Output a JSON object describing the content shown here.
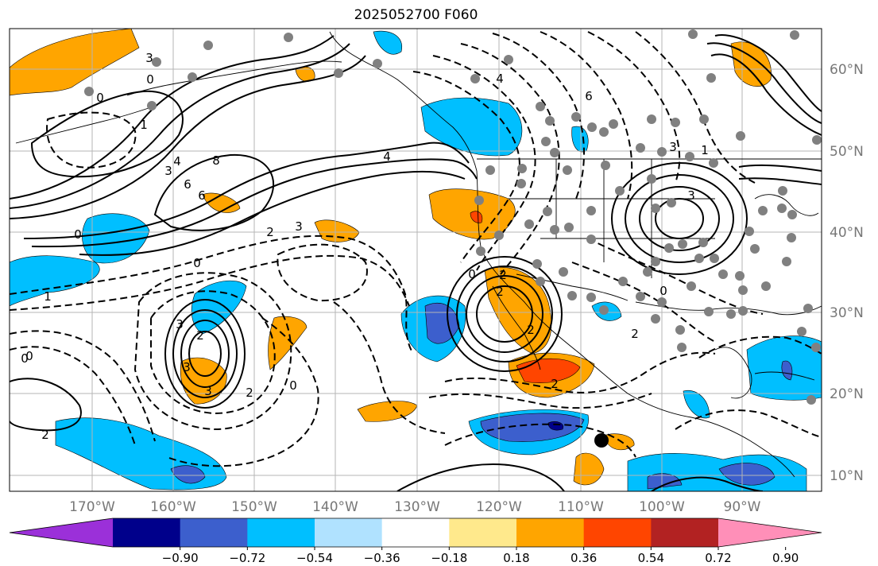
{
  "title": "2025052700 F060",
  "lon_labels": [
    "170°W",
    "160°W",
    "150°W",
    "140°W",
    "130°W",
    "120°W",
    "110°W",
    "100°W",
    "90°W"
  ],
  "lat_labels": [
    "60°N",
    "50°N",
    "40°N",
    "30°N",
    "20°N",
    "10°N"
  ],
  "colorbar": {
    "tick_labels": [
      "−0.90",
      "−0.72",
      "−0.54",
      "−0.36",
      "−0.18",
      "0.18",
      "0.36",
      "0.54",
      "0.72",
      "0.90"
    ],
    "colors": [
      "#9b30d9",
      "#00008b",
      "#3c5fcd",
      "#00bfff",
      "#b0e2ff",
      "#ffffff",
      "#ffe98c",
      "#ffa500",
      "#ff4500",
      "#b22222",
      "#ff8fb8"
    ]
  },
  "contour_labels": [
    "0",
    "3",
    "0",
    "6",
    "0",
    "1",
    "3",
    "4",
    "6",
    "8",
    "4",
    "3",
    "2",
    "0",
    "3",
    "2",
    "3",
    "2",
    "0",
    "3",
    "2",
    "1",
    "0",
    "2",
    "2",
    "6",
    "3",
    "1",
    "2",
    "0",
    "2",
    "0",
    "3",
    "4",
    "2",
    "0"
  ],
  "colors": {
    "neg_light": "#00bfff",
    "neg_mid": "#3c5fcd",
    "neg_dark": "#00008b",
    "pos_light": "#ffa500",
    "pos_mid": "#ff4500",
    "pos_dark": "#b22222"
  }
}
